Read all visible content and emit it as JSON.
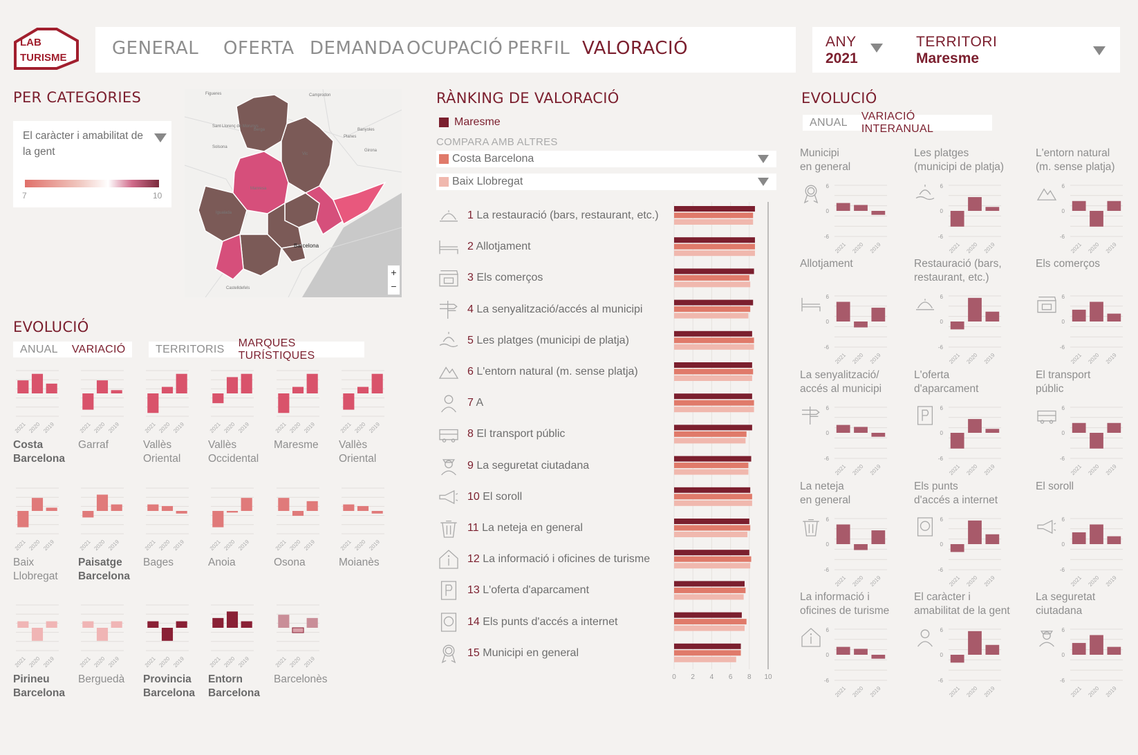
{
  "logo": {
    "line1": "LAB",
    "line2": "TURISME"
  },
  "nav": {
    "items": [
      "GENERAL",
      "OFERTA",
      "DEMANDA",
      "OCUPACIÓ",
      "PERFIL",
      "VALORACIÓ"
    ],
    "active": "VALORACIÓ"
  },
  "filters": {
    "year_label": "ANY",
    "year_value": "2021",
    "territory_label": "TERRITORI",
    "territory_value": "Maresme"
  },
  "categories": {
    "title": "PER CATEGORIES",
    "selected": "El caràcter i amabilitat de la gent",
    "legend_min": "7",
    "legend_max": "10"
  },
  "map": {
    "place_labels": [
      "Figueres",
      "Camprodon",
      "Banyoles",
      "Girona",
      "Planes",
      "Solsona",
      "Sant Llorenç de Morunys",
      "Berga",
      "Manresa",
      "Igualada",
      "Barcelona",
      "Vic",
      "Castelldefels"
    ],
    "zoom_in": "+",
    "zoom_out": "−"
  },
  "evolucio_left": {
    "title": "EVOLUCIÓ",
    "tabs1": [
      "ANUAL",
      "VARIACIÓ"
    ],
    "tabs1_active": "VARIACIÓ",
    "tabs2": [
      "TERRITORIS",
      "MARQUES TURÍSTIQUES"
    ],
    "tabs2_active": "MARQUES TURÍSTIQUES",
    "years": [
      "2021",
      "2020",
      "2019"
    ],
    "items": [
      {
        "name": "Costa\nBarcelona",
        "bold": true,
        "values": [
          4,
          6,
          3
        ],
        "style": "a"
      },
      {
        "name": "Garraf",
        "bold": false,
        "values": [
          -5,
          4,
          1
        ],
        "style": "a"
      },
      {
        "name": "Vallès\nOriental",
        "bold": false,
        "values": [
          -6,
          2,
          6
        ],
        "style": "a"
      },
      {
        "name": "Vallès\nOccidental",
        "bold": false,
        "values": [
          -3,
          5,
          6
        ],
        "style": "a"
      },
      {
        "name": "Maresme",
        "bold": false,
        "values": [
          -6,
          2,
          6
        ],
        "style": "a"
      },
      {
        "name": "Vallès\nOriental",
        "bold": false,
        "values": [
          -5,
          2,
          6
        ],
        "style": "a"
      },
      {
        "name": "Baix\nLlobregat",
        "bold": false,
        "values": [
          -5,
          4,
          1
        ],
        "style": "b"
      },
      {
        "name": "Paisatge\nBarcelona",
        "bold": true,
        "values": [
          -2,
          5,
          2
        ],
        "style": "b"
      },
      {
        "name": "Bages",
        "bold": false,
        "values": [
          2,
          1.5,
          -0.8
        ],
        "style": "b"
      },
      {
        "name": "Anoia",
        "bold": false,
        "values": [
          -5,
          -0.5,
          4
        ],
        "style": "b"
      },
      {
        "name": "Osona",
        "bold": false,
        "values": [
          4,
          -1.5,
          3
        ],
        "style": "b"
      },
      {
        "name": "Moianès",
        "bold": false,
        "values": [
          2,
          1.5,
          -0.8
        ],
        "style": "b"
      },
      {
        "name": "Pirineu\nBarcelona",
        "bold": true,
        "values": [
          2,
          -4,
          2
        ],
        "style": "c"
      },
      {
        "name": "Berguedà",
        "bold": false,
        "values": [
          2,
          -4,
          2
        ],
        "style": "c"
      },
      {
        "name": "Provincia\nBarcelona",
        "bold": true,
        "values": [
          2,
          -4,
          2
        ],
        "style": "d"
      },
      {
        "name": "Entorn\nBarcelona",
        "bold": true,
        "values": [
          3,
          5,
          2
        ],
        "style": "d"
      },
      {
        "name": "Barcelonès",
        "bold": false,
        "values": [
          4,
          -1.5,
          3
        ],
        "style": "e"
      }
    ],
    "colors": {
      "a": "#d9536b",
      "b": "#e07a7a",
      "c": "#f0b5b5",
      "d": "#8a2035",
      "e": "#c98e98"
    }
  },
  "ranking": {
    "title": "RÀNKING DE VALORACIÓ",
    "main_territory": "Maresme",
    "compare_label": "COMPARA AMB ALTRES",
    "compare1": "Costa Barcelona",
    "compare2": "Baix Llobregat",
    "items": [
      {
        "rank": "1",
        "label": "La restauració (bars, restaurant, etc.)",
        "icon": "restaurant-icon"
      },
      {
        "rank": "2",
        "label": "Allotjament",
        "icon": "bed-icon"
      },
      {
        "rank": "3",
        "label": "Els comerços",
        "icon": "shop-icon"
      },
      {
        "rank": "4",
        "label": "La senyalització/accés al municipi",
        "icon": "signpost-icon"
      },
      {
        "rank": "5",
        "label": "Les platges (municipi de platja)",
        "icon": "beach-icon"
      },
      {
        "rank": "6",
        "label": "L'entorn natural (m. sense platja)",
        "icon": "mountain-icon"
      },
      {
        "rank": "7",
        "label": "A",
        "icon": "person-icon"
      },
      {
        "rank": "8",
        "label": "El transport públic",
        "icon": "bus-icon"
      },
      {
        "rank": "9",
        "label": "La seguretat ciutadana",
        "icon": "police-icon"
      },
      {
        "rank": "10",
        "label": "El soroll",
        "icon": "megaphone-icon"
      },
      {
        "rank": "11",
        "label": "La neteja en general",
        "icon": "trash-icon"
      },
      {
        "rank": "12",
        "label": "La informació i oficines de turisme",
        "icon": "info-icon"
      },
      {
        "rank": "13",
        "label": "L'oferta d'aparcament",
        "icon": "parking-icon"
      },
      {
        "rank": "14",
        "label": "Els punts d'accés a internet",
        "icon": "internet-icon"
      },
      {
        "rank": "15",
        "label": "Municipi en general",
        "icon": "award-icon"
      }
    ],
    "axis_ticks": [
      "0",
      "2",
      "4",
      "6",
      "8",
      "10"
    ],
    "colors": {
      "main": "#7b1f2e",
      "compare1": "#e07a6a",
      "compare2": "#f0b8ae"
    }
  },
  "chart_data": {
    "type": "bar",
    "title": "RÀNKING DE VALORACIÓ",
    "categories": [
      "La restauració (bars, restaurant, etc.)",
      "Allotjament",
      "Els comerços",
      "La senyalització/accés al municipi",
      "Les platges (municipi de platja)",
      "L'entorn natural (m. sense platja)",
      "A",
      "El transport públic",
      "La seguretat ciutadana",
      "El soroll",
      "La neteja en general",
      "La informació i oficines de turisme",
      "L'oferta d'aparcament",
      "Els punts d'accés a internet",
      "Municipi en general"
    ],
    "xlim": [
      0,
      10
    ],
    "series": [
      {
        "name": "Maresme",
        "values": [
          8.6,
          8.6,
          8.5,
          8.4,
          8.3,
          8.3,
          8.3,
          8.3,
          8.2,
          8.1,
          8.0,
          8.0,
          7.5,
          7.2,
          7.1
        ]
      },
      {
        "name": "Costa Barcelona",
        "values": [
          8.4,
          8.6,
          8.0,
          8.1,
          8.5,
          8.4,
          8.5,
          7.7,
          7.9,
          8.3,
          8.1,
          8.2,
          7.6,
          7.7,
          7.1
        ]
      },
      {
        "name": "Baix Llobregat",
        "values": [
          8.4,
          8.6,
          8.1,
          7.9,
          8.5,
          8.3,
          8.5,
          7.6,
          7.9,
          8.3,
          7.8,
          8.1,
          7.4,
          7.5,
          6.6
        ]
      }
    ]
  },
  "evolucio_right": {
    "title": "EVOLUCIÓ",
    "tabs": [
      "ANUAL",
      "VARIACIÓ INTERANUAL"
    ],
    "tabs_active": "VARIACIÓ INTERANUAL",
    "yticks": [
      "6",
      "0",
      "-6"
    ],
    "years": [
      "2021",
      "2020",
      "2019"
    ],
    "bar_color": "#a85a6a",
    "items": [
      {
        "label": "Municipi\nen general",
        "icon": "award-icon",
        "values": [
          2,
          1.5,
          -1
        ]
      },
      {
        "label": "Les platges\n(municipi de platja)",
        "icon": "beach-icon",
        "values": [
          -4,
          3.5,
          1
        ]
      },
      {
        "label": "L'entorn natural\n(m. sense platja)",
        "icon": "mountain-icon",
        "values": [
          2.5,
          -4,
          2.5
        ]
      },
      {
        "label": "Allotjament",
        "icon": "bed-icon",
        "values": [
          5,
          -1.5,
          3.5
        ]
      },
      {
        "label": "Restauració (bars,\nrestaurant, etc.)",
        "icon": "restaurant-icon",
        "values": [
          -2,
          6,
          2.5
        ]
      },
      {
        "label": "Els comerços",
        "icon": "shop-icon",
        "values": [
          3,
          5,
          2
        ]
      },
      {
        "label": "La senyalització/\naccés al municipi",
        "icon": "signpost-icon",
        "values": [
          2,
          1.5,
          -1
        ]
      },
      {
        "label": "L'oferta\nd'aparcament",
        "icon": "parking-icon",
        "values": [
          -4,
          3.5,
          1
        ]
      },
      {
        "label": "El transport\npúblic",
        "icon": "bus-icon",
        "values": [
          2.5,
          -4,
          2.5
        ]
      },
      {
        "label": "La neteja\nen general",
        "icon": "trash-icon",
        "values": [
          5,
          -1.5,
          3.5
        ]
      },
      {
        "label": "Els punts\nd'accés a internet",
        "icon": "internet-icon",
        "values": [
          -2,
          6,
          2.5
        ]
      },
      {
        "label": "El soroll",
        "icon": "megaphone-icon",
        "values": [
          3,
          5,
          2
        ]
      },
      {
        "label": "La informació i\noficines de turisme",
        "icon": "info-icon",
        "values": [
          2,
          1.5,
          -1
        ]
      },
      {
        "label": "El caràcter i\namabilitat de la gent",
        "icon": "person-icon",
        "values": [
          -2,
          6,
          2.5
        ]
      },
      {
        "label": "La seguretat\nciutadana",
        "icon": "police-icon",
        "values": [
          3,
          5,
          2
        ]
      }
    ]
  }
}
